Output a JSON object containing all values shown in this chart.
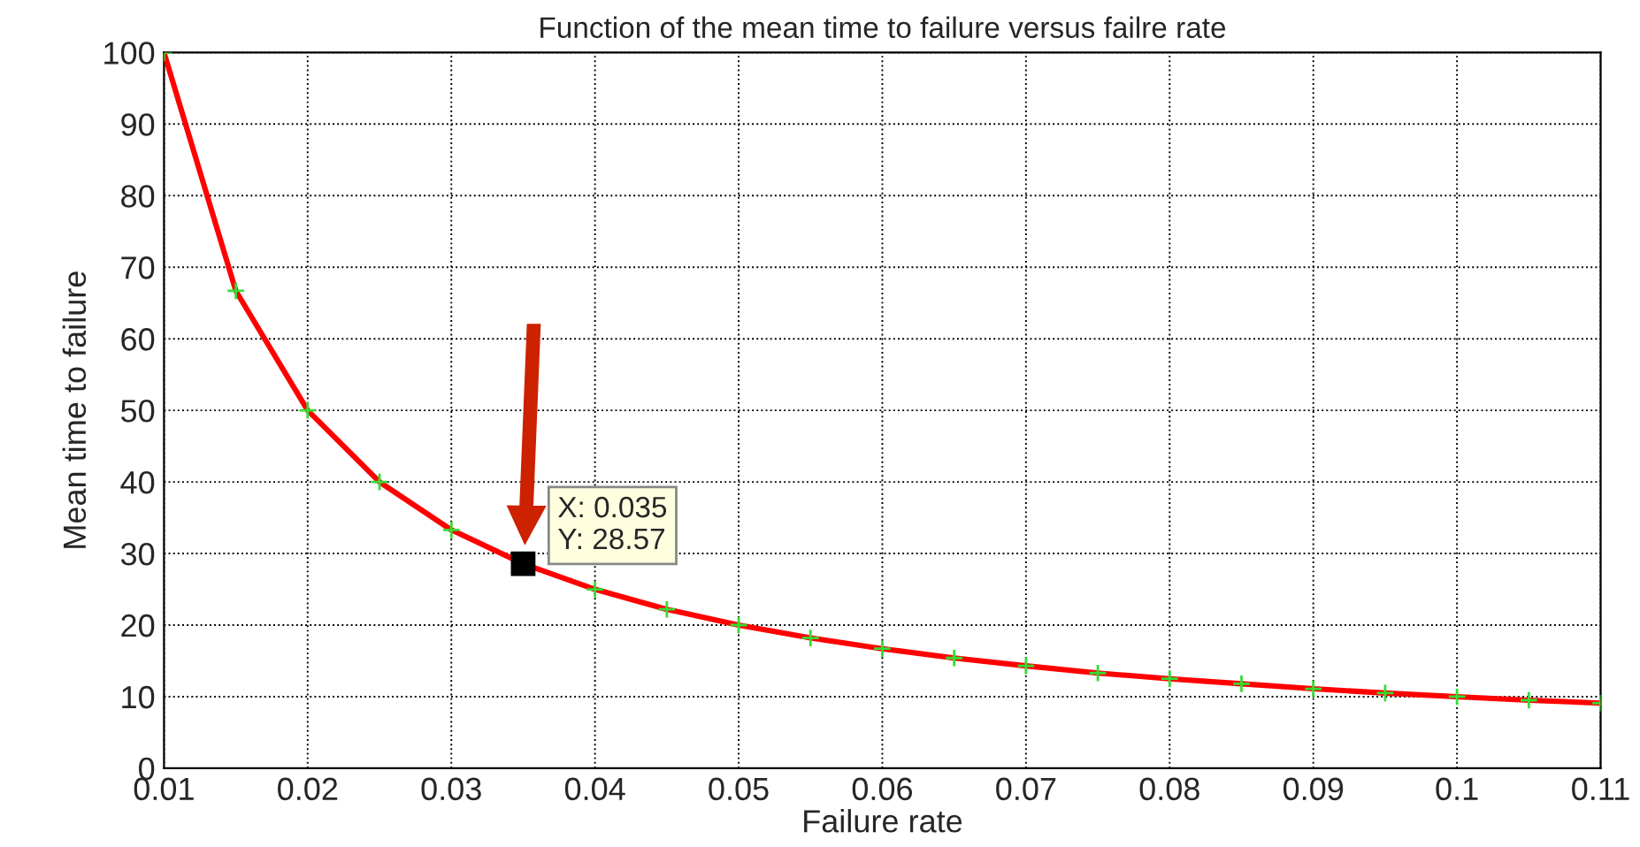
{
  "chart_data": {
    "type": "line",
    "title": "Function of the mean time to failure versus failre rate",
    "xlabel": "Failure rate",
    "ylabel": "Mean time to failure",
    "x": [
      0.01,
      0.015,
      0.02,
      0.025,
      0.03,
      0.035,
      0.04,
      0.045,
      0.05,
      0.055,
      0.06,
      0.065,
      0.07,
      0.075,
      0.08,
      0.085,
      0.09,
      0.095,
      0.1,
      0.105,
      0.11
    ],
    "series": [
      {
        "color": "#ff0000",
        "marker": "none",
        "values": [
          100,
          66.7,
          50,
          40,
          33.3,
          28.57,
          25,
          22.2,
          20,
          18.2,
          16.7,
          15.4,
          14.3,
          13.3,
          12.5,
          11.8,
          11.1,
          10.5,
          10,
          9.5,
          9.1
        ]
      },
      {
        "type": "scatter",
        "color": "#33dd33",
        "marker": "cross",
        "values": [
          100,
          66.7,
          50,
          40,
          33.3,
          null,
          25,
          22.2,
          20,
          18.2,
          16.7,
          15.4,
          14.3,
          13.3,
          12.5,
          11.8,
          11.1,
          10.5,
          10,
          9.5,
          9.1
        ]
      }
    ],
    "annotations": [
      {
        "text": "X: 0.035\nY: 28.57",
        "x": 0.035,
        "y": 28.57
      }
    ],
    "xlim": [
      0.01,
      0.11
    ],
    "xticks": [
      0.01,
      0.02,
      0.03,
      0.04,
      0.05,
      0.06,
      0.07,
      0.08,
      0.09,
      0.1,
      0.11
    ],
    "ylim": [
      0,
      100
    ],
    "yticks": [
      0,
      10,
      20,
      30,
      40,
      50,
      60,
      70,
      80,
      90,
      100
    ],
    "grid": true,
    "legend": false
  }
}
